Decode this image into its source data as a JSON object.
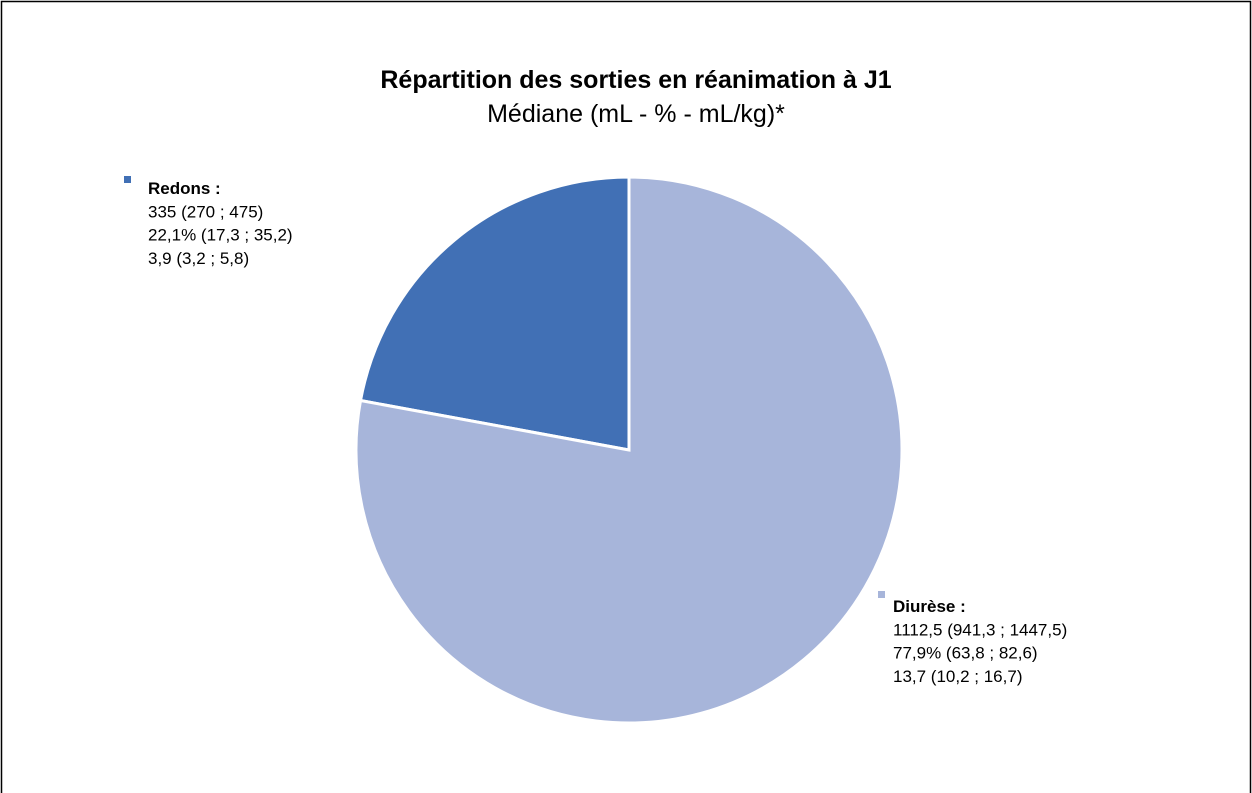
{
  "chart_data": {
    "type": "pie",
    "title": "Répartition des sorties en réanimation à J1",
    "subtitle": "Médiane (mL - % - mL/kg)*",
    "categories": [
      "Redons :",
      "Diurèse :"
    ],
    "values": [
      22.1,
      77.9
    ],
    "value_labels": [
      [
        "335 (270 ; 475)",
        "22,1% (17,3 ; 35,2)",
        "3,9 (3,2 ; 5,8)"
      ],
      [
        "1112,5 (941,3 ; 1447,5)",
        "77,9% (63,8 ; 82,6)",
        "13,7 (10,2 ; 16,7)"
      ]
    ],
    "colors": [
      "#4170b5",
      "#a7b5da"
    ]
  }
}
